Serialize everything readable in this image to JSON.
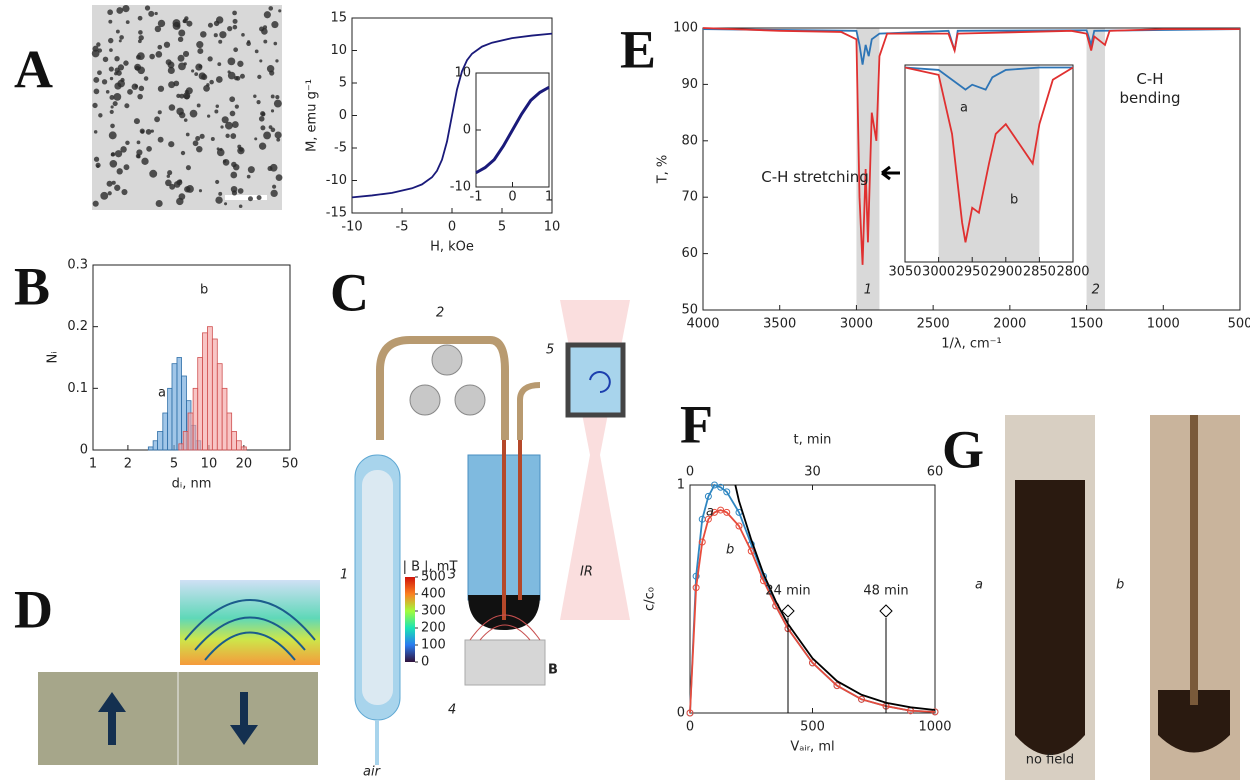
{
  "figure": {
    "panels": [
      "A",
      "B",
      "C",
      "D",
      "E",
      "F",
      "G"
    ],
    "scheme_labels": [
      "1",
      "2",
      "3",
      "4",
      "5",
      "IR",
      "air",
      "B"
    ],
    "photo_labels": [
      "a",
      "b",
      "no field"
    ]
  },
  "chart_data": [
    {
      "type": "line",
      "xlabel": "H, kOe",
      "ylabel": "M, emu g⁻¹",
      "xlim": [
        -10,
        10
      ],
      "ylim": [
        -15,
        15
      ],
      "xticks": [
        -10,
        -5,
        0,
        5,
        10
      ],
      "yticks": [
        -15,
        -10,
        -5,
        0,
        5,
        10,
        15
      ],
      "series": [
        {
          "color": "#1a1a7a",
          "x": [
            -10,
            -8,
            -6,
            -4,
            -3,
            -2,
            -1.5,
            -1,
            -0.5,
            0,
            0.5,
            1,
            1.5,
            2,
            3,
            4,
            6,
            8,
            10
          ],
          "values": [
            -12.6,
            -12.3,
            -11.9,
            -11.2,
            -10.6,
            -9.5,
            -8.5,
            -6.8,
            -4,
            0,
            4,
            6.8,
            8.5,
            9.5,
            10.6,
            11.2,
            11.9,
            12.3,
            12.6
          ]
        }
      ]
    },
    {
      "type": "line",
      "xlim": [
        -1,
        1
      ],
      "ylim": [
        -10,
        10
      ],
      "xticks": [
        -1,
        0,
        1
      ],
      "yticks": [
        -10,
        0,
        10
      ],
      "series": [
        {
          "color": "#1a1a7a",
          "x": [
            -1,
            -0.75,
            -0.5,
            -0.25,
            0,
            0.25,
            0.5,
            0.75,
            1
          ],
          "values": [
            -7.5,
            -6.6,
            -5.2,
            -2.8,
            0,
            2.8,
            5.2,
            6.6,
            7.5
          ]
        }
      ]
    },
    {
      "type": "histogram",
      "xlabel": "dᵢ, nm",
      "ylabel": "Nᵢ",
      "log_x": true,
      "xlim": [
        1,
        50
      ],
      "ylim": [
        0,
        0.3
      ],
      "xticks": [
        1,
        2,
        5,
        10,
        20,
        50
      ],
      "yticks": [
        0,
        0.1,
        0.2,
        0.3
      ],
      "series": [
        {
          "name": "a",
          "color": "#6fa8dc",
          "bins": [
            3.0,
            3.3,
            3.6,
            4.0,
            4.4,
            4.8,
            5.3,
            5.8,
            6.4,
            7.0,
            7.7,
            8.5
          ],
          "values": [
            0.005,
            0.015,
            0.03,
            0.06,
            0.1,
            0.14,
            0.15,
            0.12,
            0.08,
            0.04,
            0.015
          ]
        },
        {
          "name": "b",
          "color": "#f4a6a6",
          "bins": [
            5.5,
            6.0,
            6.6,
            7.3,
            8.0,
            8.8,
            9.7,
            10.7,
            11.8,
            13.0,
            14.3,
            15.7,
            17.3,
            19.0,
            21.0
          ],
          "values": [
            0.01,
            0.03,
            0.06,
            0.1,
            0.15,
            0.19,
            0.2,
            0.18,
            0.14,
            0.1,
            0.06,
            0.03,
            0.015,
            0.005
          ]
        }
      ]
    },
    {
      "type": "line",
      "xlabel": "1/λ, cm⁻¹",
      "ylabel": "T, %",
      "xlim": [
        4000,
        500
      ],
      "ylim": [
        50,
        100
      ],
      "xticks": [
        4000,
        3500,
        3000,
        2500,
        2000,
        1500,
        1000,
        500
      ],
      "yticks": [
        50,
        60,
        70,
        80,
        90,
        100
      ],
      "bands": [
        {
          "label": "1",
          "range": [
            3000,
            2850
          ]
        },
        {
          "label": "2",
          "range": [
            1500,
            1380
          ]
        }
      ],
      "annotations": [
        "C-H stretching",
        "C-H bending"
      ],
      "series": [
        {
          "color": "#2e75b6",
          "x": [
            4000,
            3000,
            2980,
            2960,
            2940,
            2920,
            2900,
            2850,
            2400,
            2360,
            2340,
            1500,
            1470,
            1450,
            500
          ],
          "values": [
            99.8,
            99.5,
            97,
            93.5,
            97,
            95,
            98,
            99,
            99.5,
            96,
            99.5,
            99.6,
            97,
            99.5,
            99.8
          ]
        },
        {
          "color": "#e03030",
          "x": [
            4000,
            3500,
            3100,
            3000,
            2980,
            2960,
            2940,
            2925,
            2900,
            2870,
            2850,
            2800,
            2400,
            2360,
            2340,
            1600,
            1500,
            1470,
            1450,
            1380,
            1350,
            1000,
            500
          ],
          "values": [
            100,
            99.5,
            99.3,
            98,
            70,
            58,
            75,
            62,
            85,
            80,
            95,
            99,
            99,
            96,
            99,
            99.5,
            99,
            96,
            98.5,
            97,
            99.5,
            99.8,
            99.8
          ]
        }
      ]
    },
    {
      "type": "line",
      "xlim": [
        3050,
        2800
      ],
      "ylim": [
        60,
        100
      ],
      "xticks": [
        3050,
        3000,
        2950,
        2900,
        2850,
        2800
      ],
      "bands": [
        {
          "range": [
            3000,
            2850
          ]
        }
      ],
      "series": [
        {
          "name": "a",
          "color": "#2e75b6",
          "x": [
            3050,
            3000,
            2960,
            2950,
            2930,
            2920,
            2900,
            2850,
            2800
          ],
          "values": [
            99.5,
            99,
            95,
            96,
            95,
            97.5,
            99,
            99.5,
            99.5
          ]
        },
        {
          "name": "b",
          "color": "#e03030",
          "x": [
            3050,
            3000,
            2980,
            2965,
            2960,
            2950,
            2940,
            2925,
            2915,
            2900,
            2880,
            2860,
            2850,
            2830,
            2800
          ],
          "values": [
            99.5,
            98,
            86,
            68,
            64,
            71,
            70,
            80,
            86,
            88,
            84,
            80,
            88,
            97,
            99.5
          ]
        }
      ]
    },
    {
      "type": "scatter",
      "xlabel": "Vₐᵢᵣ, ml",
      "ylabel": "c/c₀",
      "x2label": "t, min",
      "xlim": [
        0,
        1000
      ],
      "ylim": [
        0,
        1
      ],
      "xticks": [
        0,
        500,
        1000
      ],
      "yticks": [
        0,
        1
      ],
      "x2lim": [
        0,
        60
      ],
      "x2ticks": [
        0,
        30,
        60
      ],
      "annotations": [
        {
          "text": "24 min",
          "x": 400
        },
        {
          "text": "48 min",
          "x": 800
        }
      ],
      "series": [
        {
          "name": "a",
          "color": "#2e86c1",
          "x": [
            0,
            25,
            50,
            75,
            100,
            125,
            150,
            200,
            250,
            300,
            350,
            400,
            500,
            600,
            700,
            800,
            900,
            1000
          ],
          "values": [
            0,
            0.6,
            0.85,
            0.95,
            1.0,
            0.99,
            0.97,
            0.88,
            0.74,
            0.6,
            0.47,
            0.37,
            0.22,
            0.12,
            0.06,
            0.03,
            0.01,
            0.005
          ]
        },
        {
          "name": "b",
          "color": "#e74c3c",
          "x": [
            0,
            25,
            50,
            75,
            100,
            125,
            150,
            200,
            250,
            300,
            350,
            400,
            500,
            600,
            700,
            800,
            900,
            1000
          ],
          "values": [
            0,
            0.55,
            0.75,
            0.85,
            0.88,
            0.89,
            0.88,
            0.82,
            0.71,
            0.58,
            0.47,
            0.37,
            0.22,
            0.12,
            0.06,
            0.03,
            0.01,
            0.005
          ]
        },
        {
          "color": "#000000",
          "x": [
            185,
            200,
            250,
            300,
            350,
            400,
            500,
            600,
            700,
            800,
            900,
            1000
          ],
          "values": [
            1.0,
            0.93,
            0.76,
            0.61,
            0.49,
            0.39,
            0.24,
            0.14,
            0.08,
            0.045,
            0.025,
            0.013
          ]
        }
      ]
    },
    {
      "type": "colorbar",
      "title": "| B |, mT",
      "lim": [
        0,
        500
      ],
      "ticks": [
        0,
        100,
        200,
        300,
        400,
        500
      ]
    }
  ]
}
